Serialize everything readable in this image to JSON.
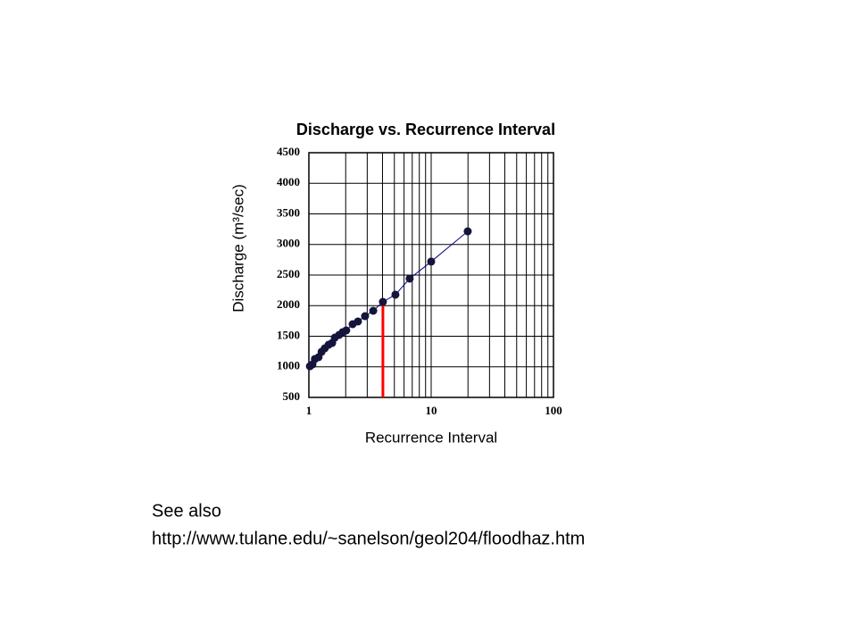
{
  "chart_data": {
    "type": "line",
    "title": "Discharge vs. Recurrence Interval",
    "xlabel": "Recurrence Interval",
    "ylabel": "Discharge (m³/sec)",
    "x": [
      1.02,
      1.07,
      1.12,
      1.2,
      1.27,
      1.35,
      1.45,
      1.55,
      1.63,
      1.77,
      1.89,
      2.02,
      2.28,
      2.52,
      2.88,
      3.36,
      4.03,
      5.1,
      6.67,
      10,
      19.9
    ],
    "series": [
      {
        "color": "#000080",
        "marker_color": "#14143c",
        "values": [
          1010,
          1040,
          1128,
          1157,
          1245,
          1303,
          1361,
          1390,
          1478,
          1522,
          1566,
          1595,
          1697,
          1741,
          1828,
          1916,
          2062,
          2179,
          2442,
          2720,
          3215
        ]
      }
    ],
    "xscale": "log",
    "xlim": [
      1,
      100
    ],
    "xticks": [
      1,
      10,
      100
    ],
    "xminor": [
      2,
      3,
      4,
      5,
      6,
      7,
      8,
      9,
      20,
      30,
      40,
      50,
      60,
      70,
      80,
      90
    ],
    "ylim": [
      500,
      4500
    ],
    "yticks": [
      500,
      1000,
      1500,
      2000,
      2500,
      3000,
      3500,
      4000,
      4500
    ],
    "grid": true,
    "marker_line": {
      "x": 4.03,
      "y": 2062,
      "color": "#ff0000"
    }
  },
  "notes": [
    "See also",
    "http://www.tulane.edu/~sanelson/geol204/floodhaz.htm"
  ]
}
